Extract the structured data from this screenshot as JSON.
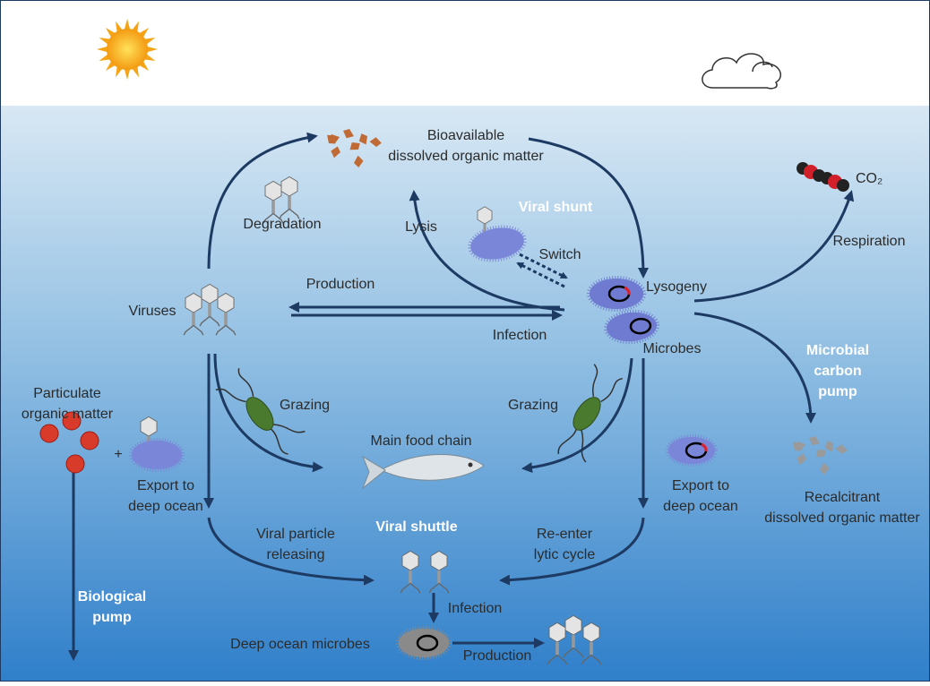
{
  "labels": [
    {
      "lines": [
        "Bioavailable",
        "dissolved organic matter"
      ]
    },
    {
      "lines": [
        "CO₂"
      ]
    },
    {
      "lines": [
        "Degradation"
      ]
    },
    {
      "lines": [
        "Lysis"
      ]
    },
    {
      "lines": [
        "Viral shunt"
      ]
    },
    {
      "lines": [
        "Switch"
      ]
    },
    {
      "lines": [
        "Respiration"
      ]
    },
    {
      "lines": [
        "Production"
      ]
    },
    {
      "lines": [
        "Lysogeny"
      ]
    },
    {
      "lines": [
        "Viruses"
      ]
    },
    {
      "lines": [
        "Infection"
      ]
    },
    {
      "lines": [
        "Microbes"
      ]
    },
    {
      "lines": [
        "Microbial",
        "carbon",
        "pump"
      ]
    },
    {
      "lines": [
        "Particulate",
        "organic matter"
      ]
    },
    {
      "lines": [
        "+"
      ]
    },
    {
      "lines": [
        "Grazing"
      ]
    },
    {
      "lines": [
        "Grazing"
      ]
    },
    {
      "lines": [
        "Main food chain"
      ]
    },
    {
      "lines": [
        "Export to",
        "deep ocean"
      ]
    },
    {
      "lines": [
        "Export to",
        "deep ocean"
      ]
    },
    {
      "lines": [
        "Recalcitrant",
        "dissolved organic matter"
      ]
    },
    {
      "lines": [
        "Viral shuttle"
      ]
    },
    {
      "lines": [
        "Viral particle",
        "releasing"
      ]
    },
    {
      "lines": [
        "Re-enter",
        "lytic cycle"
      ]
    },
    {
      "lines": [
        "Biological",
        "pump"
      ]
    },
    {
      "lines": [
        "Infection"
      ]
    },
    {
      "lines": [
        "Deep ocean microbes"
      ]
    },
    {
      "lines": [
        "Production"
      ]
    }
  ]
}
